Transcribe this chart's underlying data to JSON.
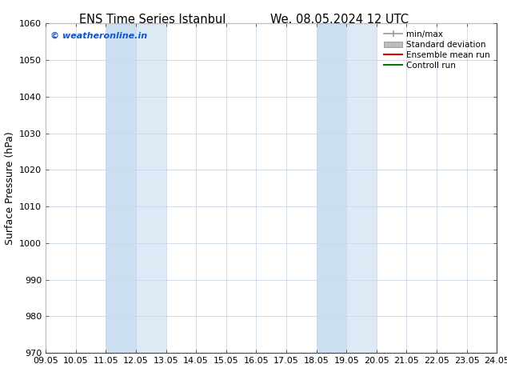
{
  "title_left": "ENS Time Series Istanbul",
  "title_right": "We. 08.05.2024 12 UTC",
  "ylabel": "Surface Pressure (hPa)",
  "ylim": [
    970,
    1060
  ],
  "yticks": [
    970,
    980,
    990,
    1000,
    1010,
    1020,
    1030,
    1040,
    1050,
    1060
  ],
  "x_tick_labels": [
    "09.05",
    "10.05",
    "11.05",
    "12.05",
    "13.05",
    "14.05",
    "15.05",
    "16.05",
    "17.05",
    "18.05",
    "19.05",
    "20.05",
    "21.05",
    "22.05",
    "23.05",
    "24.05"
  ],
  "x_tick_positions": [
    0,
    1,
    2,
    3,
    4,
    5,
    6,
    7,
    8,
    9,
    10,
    11,
    12,
    13,
    14,
    15
  ],
  "shaded_regions": [
    {
      "xmin": 2.0,
      "xmax": 3.0,
      "color": "#ccdff0"
    },
    {
      "xmin": 3.0,
      "xmax": 4.0,
      "color": "#ddeaf5"
    },
    {
      "xmin": 9.0,
      "xmax": 10.0,
      "color": "#ccdff0"
    },
    {
      "xmin": 10.0,
      "xmax": 11.0,
      "color": "#ddeaf5"
    }
  ],
  "watermark_text": "© weatheronline.in",
  "watermark_color": "#1155cc",
  "background_color": "#ffffff",
  "legend_items": [
    {
      "label": "min/max",
      "color": "#999999",
      "lw": 1.2,
      "style": "minmax"
    },
    {
      "label": "Standard deviation",
      "color": "#bbbbbb",
      "lw": 7,
      "style": "bar"
    },
    {
      "label": "Ensemble mean run",
      "color": "#dd0000",
      "lw": 1.5,
      "style": "line"
    },
    {
      "label": "Controll run",
      "color": "#007700",
      "lw": 1.5,
      "style": "line"
    }
  ],
  "grid_color": "#c8d8e8",
  "tick_label_fontsize": 8,
  "axis_label_fontsize": 9,
  "title_fontsize": 10.5,
  "figsize": [
    6.34,
    4.9
  ],
  "dpi": 100
}
